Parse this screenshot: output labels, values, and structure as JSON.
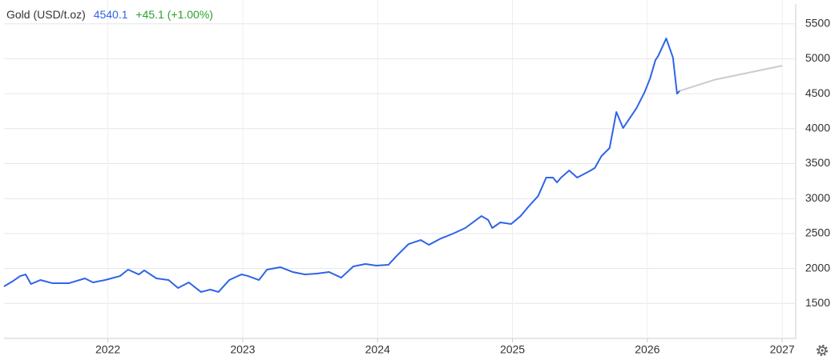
{
  "header": {
    "title": "Gold (USD/t.oz)",
    "price": "4540.1",
    "change": "+45.1 (+1.00%)"
  },
  "chart_data": {
    "type": "line",
    "xlim": [
      2021.23,
      2027.1
    ],
    "ylim": [
      1000,
      5840
    ],
    "xticks": [
      2022,
      2023,
      2024,
      2025,
      2026,
      2027
    ],
    "yticks": [
      1500,
      2000,
      2500,
      3000,
      3500,
      4000,
      4500,
      5000,
      5500
    ],
    "grid": true,
    "series": [
      {
        "color": "#2f64e8",
        "x": [
          2021.23,
          2021.29,
          2021.35,
          2021.39,
          2021.43,
          2021.5,
          2021.59,
          2021.71,
          2021.83,
          2021.89,
          2021.98,
          2022.09,
          2022.15,
          2022.23,
          2022.27,
          2022.36,
          2022.45,
          2022.52,
          2022.6,
          2022.69,
          2022.76,
          2022.82,
          2022.9,
          2022.99,
          2023.04,
          2023.12,
          2023.18,
          2023.28,
          2023.37,
          2023.46,
          2023.55,
          2023.64,
          2023.73,
          2023.82,
          2023.91,
          2023.99,
          2024.08,
          2024.14,
          2024.23,
          2024.32,
          2024.38,
          2024.47,
          2024.56,
          2024.65,
          2024.77,
          2024.82,
          2024.85,
          2024.91,
          2024.99,
          2025.06,
          2025.12,
          2025.19,
          2025.25,
          2025.3,
          2025.33,
          2025.36,
          2025.42,
          2025.48,
          2025.57,
          2025.61,
          2025.66,
          2025.72,
          2025.77,
          2025.82,
          2025.86,
          2025.92,
          2025.98,
          2026.02,
          2026.06,
          2026.08,
          2026.14,
          2026.19,
          2026.22,
          2026.24
        ],
        "values": [
          1744,
          1812,
          1892,
          1915,
          1778,
          1835,
          1789,
          1789,
          1858,
          1801,
          1835,
          1892,
          1984,
          1915,
          1973,
          1858,
          1835,
          1721,
          1801,
          1664,
          1698,
          1664,
          1835,
          1915,
          1892,
          1835,
          1984,
          2018,
          1950,
          1915,
          1927,
          1950,
          1869,
          2030,
          2064,
          2041,
          2052,
          2178,
          2350,
          2407,
          2338,
          2430,
          2499,
          2579,
          2750,
          2693,
          2579,
          2659,
          2636,
          2750,
          2888,
          3036,
          3300,
          3300,
          3231,
          3300,
          3402,
          3300,
          3391,
          3437,
          3609,
          3723,
          4238,
          4009,
          4123,
          4295,
          4524,
          4718,
          4981,
          5038,
          5290,
          5015,
          4500,
          4540.1
        ]
      },
      {
        "color": "#cccccc",
        "x": [
          2026.24,
          2026.5,
          2027.0
        ],
        "values": [
          4540.1,
          4700,
          4900
        ]
      }
    ]
  }
}
